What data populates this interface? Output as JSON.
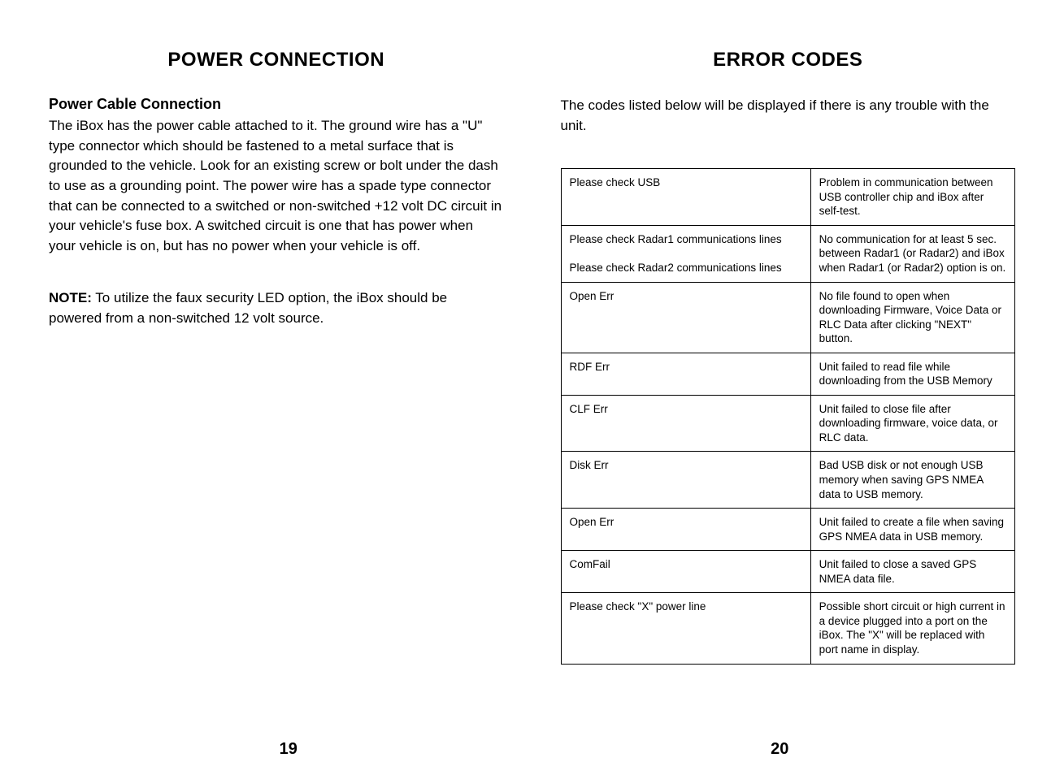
{
  "left": {
    "title": "POWER CONNECTION",
    "subhead": "Power Cable Connection",
    "body": "The iBox has the power cable attached to it. The ground wire has a \"U\" type connector which should be fastened to a metal surface that is grounded to the vehicle. Look for an existing screw or bolt under the dash to use as a grounding point. The power wire has a spade type connector that can be connected to a switched or non-switched +12 volt DC circuit in your vehicle's fuse box. A switched circuit is one that has power when your vehicle is on, but has no power when your vehicle is off.",
    "note_label": "NOTE:",
    "note_body": " To utilize the faux security LED option, the iBox should be powered from a non-switched 12 volt source.",
    "pagenum": "19"
  },
  "right": {
    "title": "ERROR CODES",
    "intro": "The codes listed below will be displayed if there is any trouble with the unit.",
    "rows": [
      {
        "code": "Please check USB",
        "desc": "Problem in communication between USB controller chip and iBox after self-test."
      },
      {
        "code": "Please check Radar1 communications lines\n\nPlease check Radar2 communications lines",
        "desc": "No communication for at least 5 sec. between Radar1 (or Radar2) and iBox when Radar1 (or Radar2) option is on."
      },
      {
        "code": "Open Err",
        "desc": "No file found to open when downloading Firmware, Voice Data or RLC Data after clicking \"NEXT\" button."
      },
      {
        "code": "RDF Err",
        "desc": "Unit failed to read file while downloading from the USB Memory"
      },
      {
        "code": "CLF Err",
        "desc": "Unit failed to close file after downloading firmware, voice data, or RLC data."
      },
      {
        "code": "Disk Err",
        "desc": "Bad USB disk or not enough USB memory when saving GPS NMEA data to USB memory."
      },
      {
        "code": "Open Err",
        "desc": "Unit failed to create a file when saving GPS NMEA data in USB memory."
      },
      {
        "code": "ComFail",
        "desc": "Unit failed to close a saved GPS NMEA data file."
      },
      {
        "code": "Please check \"X\" power line",
        "desc": "Possible short circuit or high current in a device plugged into a port on the iBox. The \"X\" will be replaced with port name in display."
      }
    ],
    "pagenum": "20"
  }
}
